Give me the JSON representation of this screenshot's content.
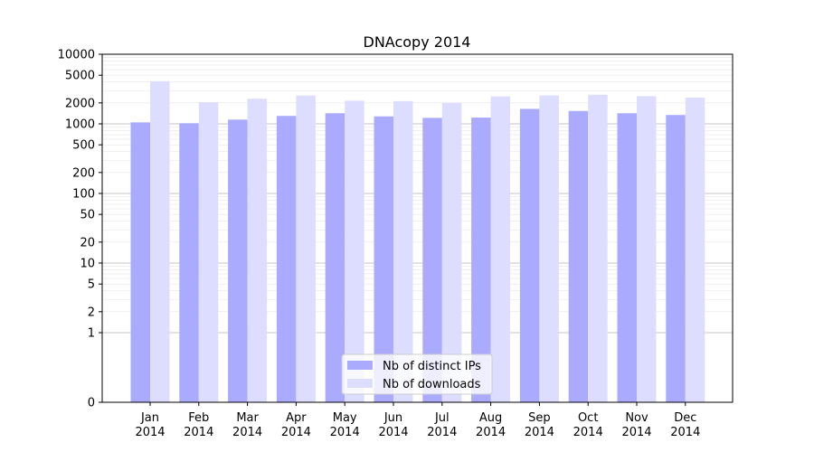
{
  "chart_data": {
    "type": "bar",
    "title": "DNAcopy 2014",
    "xlabel": "",
    "ylabel": "",
    "yscale": "symlog",
    "ylim": [
      0,
      10000
    ],
    "yticks": [
      0,
      1,
      2,
      5,
      10,
      20,
      50,
      100,
      200,
      500,
      1000,
      2000,
      5000,
      10000
    ],
    "grid": true,
    "legend_position": "bottom-center",
    "categories": [
      {
        "month": "Jan",
        "year": "2014"
      },
      {
        "month": "Feb",
        "year": "2014"
      },
      {
        "month": "Mar",
        "year": "2014"
      },
      {
        "month": "Apr",
        "year": "2014"
      },
      {
        "month": "May",
        "year": "2014"
      },
      {
        "month": "Jun",
        "year": "2014"
      },
      {
        "month": "Jul",
        "year": "2014"
      },
      {
        "month": "Aug",
        "year": "2014"
      },
      {
        "month": "Sep",
        "year": "2014"
      },
      {
        "month": "Oct",
        "year": "2014"
      },
      {
        "month": "Nov",
        "year": "2014"
      },
      {
        "month": "Dec",
        "year": "2014"
      }
    ],
    "series": [
      {
        "name": "Nb of distinct IPs",
        "color": "#aaaaff",
        "values": [
          1050,
          1020,
          1150,
          1300,
          1420,
          1280,
          1220,
          1230,
          1640,
          1530,
          1420,
          1340
        ]
      },
      {
        "name": "Nb of downloads",
        "color": "#ddddff",
        "values": [
          4100,
          2050,
          2300,
          2550,
          2150,
          2120,
          2020,
          2480,
          2560,
          2620,
          2500,
          2380
        ]
      }
    ]
  }
}
